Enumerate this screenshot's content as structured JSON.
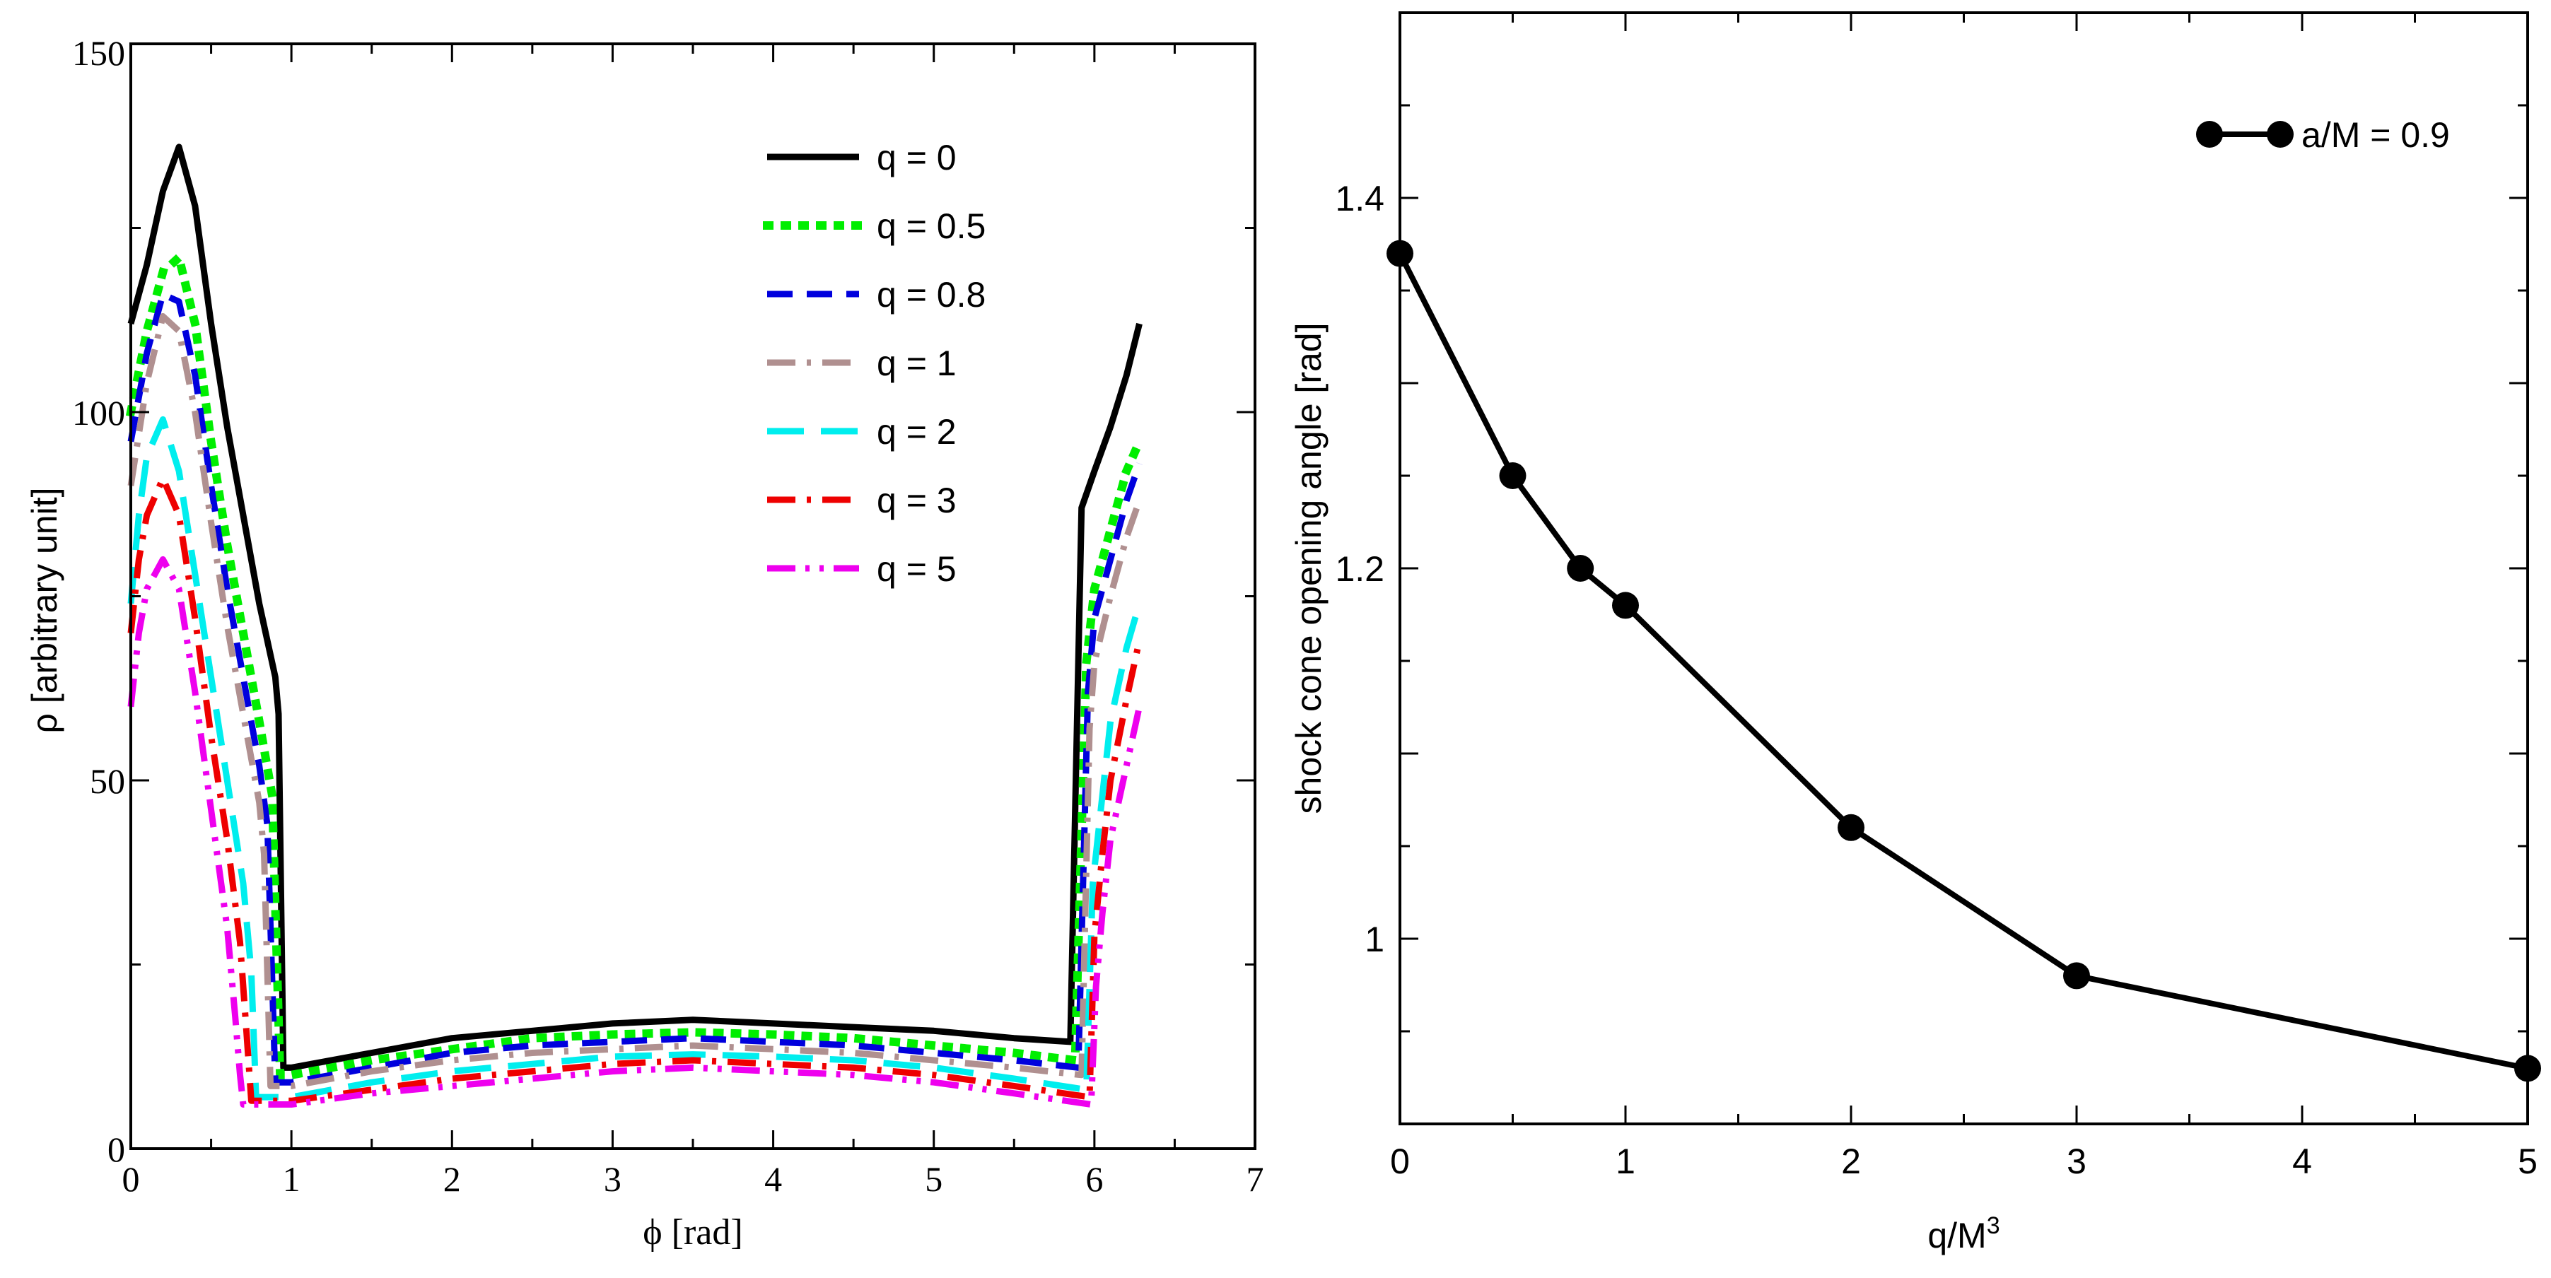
{
  "chart_data": [
    {
      "type": "line",
      "title": "",
      "xlabel": "ϕ [rad]",
      "ylabel": "ρ [arbitrary unit]",
      "xlim": [
        0,
        7
      ],
      "ylim": [
        0,
        150
      ],
      "xticks": [
        0,
        1,
        2,
        3,
        4,
        5,
        6,
        7
      ],
      "yticks": [
        0,
        50,
        100,
        150
      ],
      "legend_position": "top-right",
      "series": [
        {
          "name": "q = 0",
          "color": "#000000",
          "dash": "solid",
          "x": [
            0,
            0.1,
            0.2,
            0.3,
            0.4,
            0.5,
            0.6,
            0.7,
            0.8,
            0.9,
            0.92,
            0.95,
            1.0,
            1.5,
            2.0,
            2.5,
            3.0,
            3.5,
            4.0,
            4.5,
            5.0,
            5.5,
            5.85,
            5.92,
            6.0,
            6.1,
            6.2,
            6.28
          ],
          "y": [
            112,
            120,
            130,
            136,
            128,
            112,
            98,
            86,
            74,
            64,
            59,
            11,
            11,
            13,
            15,
            16,
            17,
            17.5,
            17,
            16.5,
            16,
            15,
            14.5,
            87,
            92,
            98,
            105,
            112
          ]
        },
        {
          "name": "q = 0.5",
          "color": "#00ee00",
          "dash": "dotted",
          "x": [
            0,
            0.1,
            0.2,
            0.3,
            0.4,
            0.5,
            0.6,
            0.7,
            0.8,
            0.88,
            0.93,
            1.0,
            1.5,
            2.0,
            2.5,
            3.0,
            3.5,
            4.0,
            4.5,
            5.0,
            5.5,
            5.88,
            5.95,
            6.0,
            6.1,
            6.2,
            6.28
          ],
          "y": [
            100,
            111,
            119,
            121,
            112,
            96,
            82,
            70,
            58,
            48,
            10,
            10,
            12,
            13.5,
            15,
            15.5,
            15.8,
            15.5,
            15,
            14,
            13,
            12,
            66,
            76,
            84,
            92,
            96
          ]
        },
        {
          "name": "q = 0.8",
          "color": "#0000dd",
          "dash": "dashed",
          "x": [
            0,
            0.1,
            0.2,
            0.3,
            0.4,
            0.5,
            0.6,
            0.7,
            0.8,
            0.85,
            0.9,
            1.0,
            1.5,
            2.0,
            2.5,
            3.0,
            3.5,
            4.0,
            4.5,
            5.0,
            5.5,
            5.9,
            5.96,
            6.0,
            6.1,
            6.2,
            6.28
          ],
          "y": [
            96,
            108,
            116,
            115,
            105,
            90,
            76,
            64,
            52,
            44,
            9,
            9,
            11,
            13,
            14,
            14.5,
            15,
            14.5,
            14,
            13,
            12,
            11,
            62,
            72,
            80,
            88,
            93
          ]
        },
        {
          "name": "q = 1",
          "color": "#b09090",
          "dash": "dashdot",
          "x": [
            0,
            0.1,
            0.2,
            0.3,
            0.4,
            0.5,
            0.6,
            0.7,
            0.8,
            0.83,
            0.87,
            1.0,
            1.5,
            2.0,
            2.5,
            3.0,
            3.5,
            4.0,
            4.5,
            5.0,
            5.5,
            5.92,
            5.97,
            6.0,
            6.1,
            6.2,
            6.28
          ],
          "y": [
            90,
            104,
            113,
            111,
            100,
            85,
            71,
            59,
            47,
            40,
            8.5,
            8.5,
            10.5,
            12,
            13,
            13.5,
            14,
            13.5,
            13,
            12,
            11,
            10,
            57,
            66,
            75,
            83,
            88
          ]
        },
        {
          "name": "q = 2",
          "color": "#00eeee",
          "dash": "longdash",
          "x": [
            0,
            0.05,
            0.1,
            0.2,
            0.3,
            0.4,
            0.5,
            0.6,
            0.7,
            0.75,
            0.78,
            1.0,
            1.5,
            2.0,
            2.5,
            3.0,
            3.5,
            4.0,
            4.5,
            5.0,
            5.5,
            5.95,
            5.99,
            6.05,
            6.1,
            6.2,
            6.28
          ],
          "y": [
            74,
            86,
            94,
            99,
            92,
            78,
            64,
            50,
            36,
            24,
            7,
            7,
            9,
            10.5,
            11.5,
            12.5,
            12.8,
            12.5,
            12,
            11,
            9.5,
            8,
            36,
            48,
            58,
            68,
            74
          ]
        },
        {
          "name": "q = 3",
          "color": "#ee0000",
          "dash": "dashdot",
          "x": [
            0,
            0.05,
            0.1,
            0.2,
            0.3,
            0.4,
            0.5,
            0.6,
            0.68,
            0.72,
            0.75,
            1.0,
            1.5,
            2.0,
            2.5,
            3.0,
            3.5,
            4.0,
            4.5,
            5.0,
            5.5,
            5.97,
            6.0,
            6.05,
            6.1,
            6.2,
            6.28
          ],
          "y": [
            70,
            80,
            86,
            91,
            86,
            72,
            56,
            42,
            28,
            16,
            6.5,
            6.5,
            8,
            9.5,
            10.5,
            11.5,
            12,
            11.5,
            11,
            10,
            8.5,
            7,
            29,
            40,
            50,
            61,
            69
          ]
        },
        {
          "name": "q = 5",
          "color": "#ee00ee",
          "dash": "dashdotdot",
          "x": [
            0,
            0.05,
            0.1,
            0.2,
            0.3,
            0.4,
            0.5,
            0.6,
            0.65,
            0.68,
            0.7,
            1.0,
            1.5,
            2.0,
            2.5,
            3.0,
            3.5,
            4.0,
            4.5,
            5.0,
            5.5,
            5.98,
            6.01,
            6.05,
            6.1,
            6.2,
            6.28
          ],
          "y": [
            60,
            70,
            76,
            80,
            76,
            62,
            46,
            30,
            18,
            10,
            6,
            6,
            7.5,
            8.5,
            9.5,
            10.5,
            11,
            10.5,
            10,
            9,
            7.5,
            6,
            22,
            32,
            42,
            52,
            60
          ]
        }
      ]
    },
    {
      "type": "line",
      "title": "",
      "xlabel": "q/M",
      "xlabel_superscript": "3",
      "ylabel": "shock cone opening angle [rad]",
      "xlim": [
        0,
        5
      ],
      "ylim": [
        0.9,
        1.5
      ],
      "xticks": [
        0,
        1,
        2,
        3,
        4,
        5
      ],
      "yticks": [
        1,
        1.2,
        1.4
      ],
      "ytick_labels": [
        "1",
        "1.2",
        "1.4"
      ],
      "legend_position": "top-right",
      "series": [
        {
          "name": "a/M = 0.9",
          "color": "#000000",
          "marker": "circle",
          "x": [
            0,
            0.5,
            0.8,
            1,
            2,
            3,
            5
          ],
          "y": [
            1.37,
            1.25,
            1.2,
            1.18,
            1.06,
            0.98,
            0.93
          ]
        }
      ]
    }
  ]
}
